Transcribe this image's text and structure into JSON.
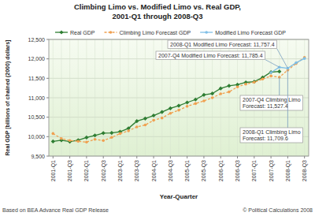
{
  "chart_data": {
    "type": "line",
    "title": "Climbing Limo vs. Modified Limo vs. Real GDP,",
    "subtitle": "2001-Q1 through 2008-Q3",
    "x_label": "Year-Quarter",
    "y_label": "Real GDP [billions of chained (2000) dollars]",
    "source": "Based on BEA Advance Real GDP Release",
    "credit": "© Political Calculations 2008",
    "categories": [
      "2001-Q1",
      null,
      "2001-Q3",
      null,
      "2002-Q1",
      null,
      "2002-Q3",
      null,
      "2003-Q1",
      null,
      "2003-Q3",
      null,
      "2004-Q1",
      null,
      "2004-Q3",
      null,
      "2005-Q1",
      null,
      "2005-Q3",
      null,
      "2006-Q1",
      null,
      "2006-Q3",
      null,
      "2007-Q1",
      null,
      "2007-Q3",
      null,
      "2008-Q1",
      null,
      "2008-Q3"
    ],
    "series": [
      {
        "name": "Real GDP",
        "color": "#2e7d32",
        "marker": "diamond",
        "line_style": "solid",
        "values": [
          9875.6,
          9905.9,
          9871.1,
          9910.0,
          9977.3,
          10031.6,
          10090.7,
          10095.8,
          10126.0,
          10212.7,
          10398.7,
          10467.0,
          10543.6,
          10634.2,
          10728.7,
          10796.4,
          10878.4,
          10954.1,
          11074.3,
          11107.2,
          11238.7,
          11306.7,
          11336.7,
          11395.5,
          11412.6,
          11520.1,
          11658.9,
          11676.0,
          null,
          null,
          null
        ]
      },
      {
        "name": "Climbing Limo Forecast GDP",
        "color": "#f0a050",
        "marker": "circle",
        "line_style": "dashed",
        "values": [
          10080,
          9950,
          9900,
          9880,
          9860,
          9930,
          9900,
          9980,
          10080,
          10150,
          10250,
          10300,
          10420,
          10480,
          10600,
          10680,
          10780,
          10850,
          10920,
          11000,
          11100,
          11150,
          11280,
          11350,
          11400,
          11480,
          11560,
          11527.4,
          11709.6,
          11880,
          12040
        ]
      },
      {
        "name": "Modified Limo Forecast GDP",
        "color": "#7fbfe6",
        "marker": "circle",
        "line_style": "solid",
        "values": [
          null,
          null,
          null,
          null,
          null,
          null,
          null,
          null,
          null,
          null,
          null,
          null,
          null,
          null,
          null,
          null,
          null,
          null,
          null,
          null,
          null,
          null,
          null,
          null,
          null,
          null,
          11650,
          11785.4,
          11757.4,
          11900,
          12010
        ]
      }
    ],
    "ylim": [
      9500,
      12500
    ],
    "yticks": [
      {
        "value": 9500,
        "label": "9,500"
      },
      {
        "value": 10000,
        "label": "10,000"
      },
      {
        "value": 10500,
        "label": "10,500"
      },
      {
        "value": 11000,
        "label": "11,000"
      },
      {
        "value": 11500,
        "label": "11,500"
      },
      {
        "value": 12000,
        "label": "12,000"
      },
      {
        "value": 12500,
        "label": "12,500"
      }
    ],
    "grid": true,
    "legend": "top",
    "annotations": [
      {
        "text": [
          "2008-Q1 Modified Limo Forecast: 11,757.4"
        ],
        "value": 11757.4
      },
      {
        "text": [
          "2007-Q4 Modified Limo Forecast: 11,785.4"
        ],
        "value": 11785.4
      },
      {
        "text": [
          "2007-Q4 Climbing Limo",
          "Forecast: 11,527.4"
        ],
        "value": 11527.4
      },
      {
        "text": [
          "2008-Q1 Climbing Limo",
          "Forecast: 11,709.6"
        ],
        "value": 11709.6
      }
    ]
  }
}
